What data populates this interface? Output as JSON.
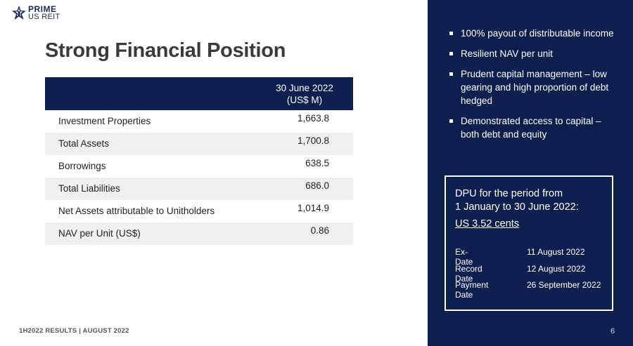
{
  "logo": {
    "line1": "PRIME",
    "line2": "US REIT"
  },
  "title": "Strong Financial Position",
  "table": {
    "header": [
      "30 June 2022",
      "(US$ M)"
    ],
    "rows": [
      {
        "label": "Investment Properties",
        "value": "1,663.8"
      },
      {
        "label": "Total Assets",
        "value": "1,700.8"
      },
      {
        "label": "Borrowings",
        "value": "638.5"
      },
      {
        "label": "Total Liabilities",
        "value": "686.0"
      },
      {
        "label": "Net Assets attributable to Unitholders",
        "value": "1,014.9"
      },
      {
        "label": "NAV per Unit (US$)",
        "value": "0.86"
      }
    ]
  },
  "panel": {
    "bullets": [
      "100% payout of distributable income",
      "Resilient NAV per unit",
      "Prudent capital management – low gearing and high proportion of debt hedged",
      "Demonstrated access to capital – both debt and equity"
    ],
    "dpu": {
      "heading_line1": "DPU for the period from",
      "heading_line2": "1 January to 30 June 2022:",
      "amount": "US 3.52 cents",
      "dates": [
        {
          "label": "Ex-Date",
          "value": "11 August 2022"
        },
        {
          "label": "Record Date",
          "value": "12 August 2022"
        },
        {
          "label": "Payment Date",
          "value": "26 September 2022"
        }
      ]
    },
    "page_number": "6"
  },
  "footer": "1H2022 RESULTS |  AUGUST 2022",
  "colors": {
    "navy": "#0c1f4f",
    "row_shade": "#f0f0f0",
    "title": "#3a3a3a"
  }
}
